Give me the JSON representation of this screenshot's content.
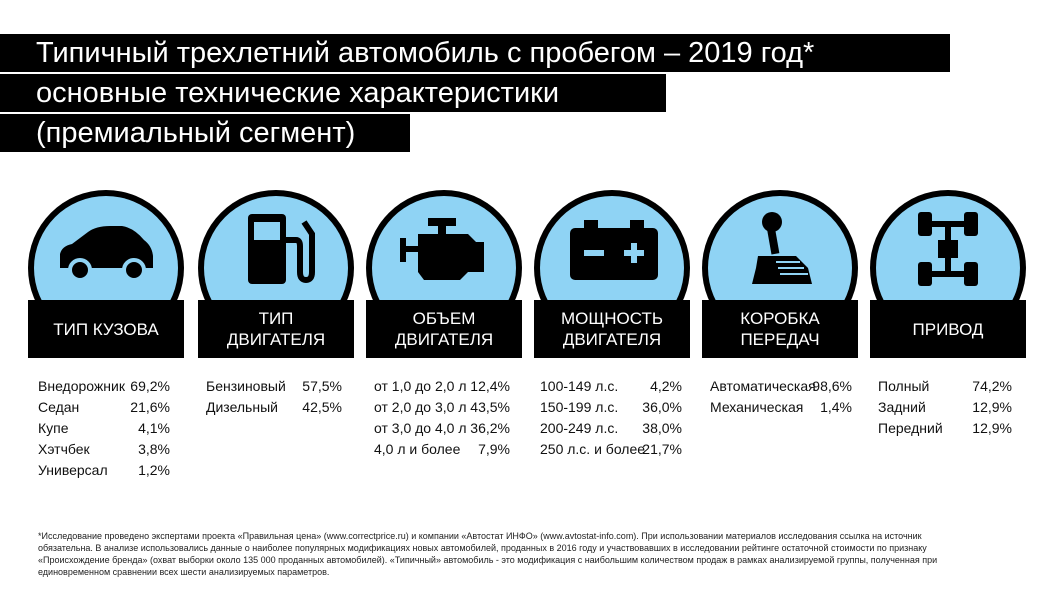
{
  "title": {
    "line1": "Типичный трехлетний автомобиль с пробегом – 2019 год*",
    "line2": "основные технические характеристики",
    "line3": "(премиальный сегмент)"
  },
  "colors": {
    "circle": "#8fd3f4",
    "dark": "#000000"
  },
  "categories": [
    {
      "label": "ТИП КУЗОВА",
      "icon": "car-icon",
      "rows": [
        {
          "name": "Внедорожник",
          "value": "69,2%"
        },
        {
          "name": "Седан",
          "value": "21,6%"
        },
        {
          "name": "Купе",
          "value": "4,1%"
        },
        {
          "name": "Хэтчбек",
          "value": "3,8%"
        },
        {
          "name": "Универсал",
          "value": "1,2%"
        }
      ]
    },
    {
      "label": "ТИП\nДВИГАТЕЛЯ",
      "icon": "fuel-pump-icon",
      "rows": [
        {
          "name": "Бензиновый",
          "value": "57,5%"
        },
        {
          "name": "Дизельный",
          "value": "42,5%"
        }
      ]
    },
    {
      "label": "ОБЪЕМ\nДВИГАТЕЛЯ",
      "icon": "engine-icon",
      "rows": [
        {
          "name": "от 1,0 до 2,0 л",
          "value": "12,4%"
        },
        {
          "name": "от 2,0 до 3,0 л",
          "value": "43,5%"
        },
        {
          "name": "от 3,0 до 4,0 л",
          "value": "36,2%"
        },
        {
          "name": "4,0 л и более",
          "value": "7,9%"
        }
      ]
    },
    {
      "label": "МОЩНОСТЬ\nДВИГАТЕЛЯ",
      "icon": "battery-icon",
      "rows": [
        {
          "name": "100-149 л.с.",
          "value": "4,2%"
        },
        {
          "name": "150-199 л.с.",
          "value": "36,0%"
        },
        {
          "name": "200-249 л.с.",
          "value": "38,0%"
        },
        {
          "name": "250 л.с. и более",
          "value": "21,7%"
        }
      ]
    },
    {
      "label": "КОРОБКА\nПЕРЕДАЧ",
      "icon": "gear-shift-icon",
      "rows": [
        {
          "name": "Автоматическая",
          "value": "98,6%"
        },
        {
          "name": "Механическая",
          "value": "1,4%"
        }
      ]
    },
    {
      "label": "ПРИВОД",
      "icon": "drivetrain-icon",
      "rows": [
        {
          "name": "Полный",
          "value": "74,2%"
        },
        {
          "name": "Задний",
          "value": "12,9%"
        },
        {
          "name": "Передний",
          "value": "12,9%"
        }
      ]
    }
  ],
  "footnote": "*Исследование проведено экспертами проекта «Правильная цена» (www.correctprice.ru) и компании «Автостат ИНФО» (www.avtostat-info.com). При использовании материалов исследования ссылка на источник обязательна. В анализе использовались данные о наиболее популярных модификациях новых автомобилей, проданных в 2016 году и участвовавших в исследовании рейтинге остаточной стоимости по признаку «Происхождение бренда» (охват выборки около 135 000 проданных автомобилей). «Типичный» автомобиль - это модификация с наибольшим количеством продаж в рамках анализируемой группы, полученная при единовременном сравнении всех шести анализируемых параметров."
}
